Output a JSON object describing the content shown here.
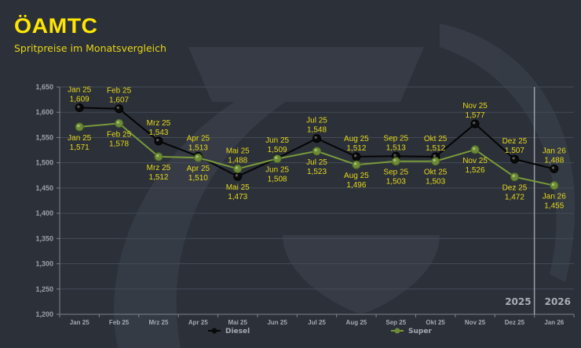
{
  "header": {
    "logo_text": "ÖAMTC",
    "subtitle": "Spritpreise im Monatsvergleich"
  },
  "colors": {
    "background": "#2b3039",
    "diesel": "#000000",
    "super": "#7a9a3a",
    "label": "#e6d81a",
    "logo": "#ffe600"
  },
  "chart_data": {
    "type": "line",
    "title": "Spritpreise im Monatsvergleich",
    "xlabel": "",
    "ylabel": "",
    "ylim": [
      1.2,
      1.65
    ],
    "yticks": [
      "1,200",
      "1,250",
      "1,300",
      "1,350",
      "1,400",
      "1,450",
      "1,500",
      "1,550",
      "1,600",
      "1,650"
    ],
    "ytick_values": [
      1.2,
      1.25,
      1.3,
      1.35,
      1.4,
      1.45,
      1.5,
      1.55,
      1.6,
      1.65
    ],
    "grid": true,
    "categories": [
      "Jan 25",
      "Feb 25",
      "Mrz 25",
      "Apr 25",
      "Mai 25",
      "Jun 25",
      "Jul 25",
      "Aug 25",
      "Sep 25",
      "Okt 25",
      "Nov 25",
      "Dez 25",
      "Jan 26"
    ],
    "year_groups": [
      {
        "label": "2025",
        "count": 12
      },
      {
        "label": "2026",
        "count": 1
      }
    ],
    "legend_position": "bottom",
    "series": [
      {
        "name": "Diesel",
        "values": [
          1.609,
          1.607,
          1.543,
          1.513,
          1.473,
          1.509,
          1.548,
          1.512,
          1.513,
          1.512,
          1.577,
          1.507,
          1.488
        ],
        "labels": [
          "1,609",
          "1,607",
          "1,543",
          "1,513",
          "1,473",
          "1,509",
          "1,548",
          "1,512",
          "1,513",
          "1,512",
          "1,577",
          "1,507",
          "1,488"
        ]
      },
      {
        "name": "Super",
        "values": [
          1.571,
          1.578,
          1.512,
          1.51,
          1.488,
          1.508,
          1.523,
          1.496,
          1.503,
          1.503,
          1.526,
          1.472,
          1.455
        ],
        "labels": [
          "1,571",
          "1,578",
          "1,512",
          "1,510",
          "1,488",
          "1,508",
          "1,523",
          "1,496",
          "1,503",
          "1,503",
          "1,526",
          "1,472",
          "1,455"
        ]
      }
    ]
  }
}
